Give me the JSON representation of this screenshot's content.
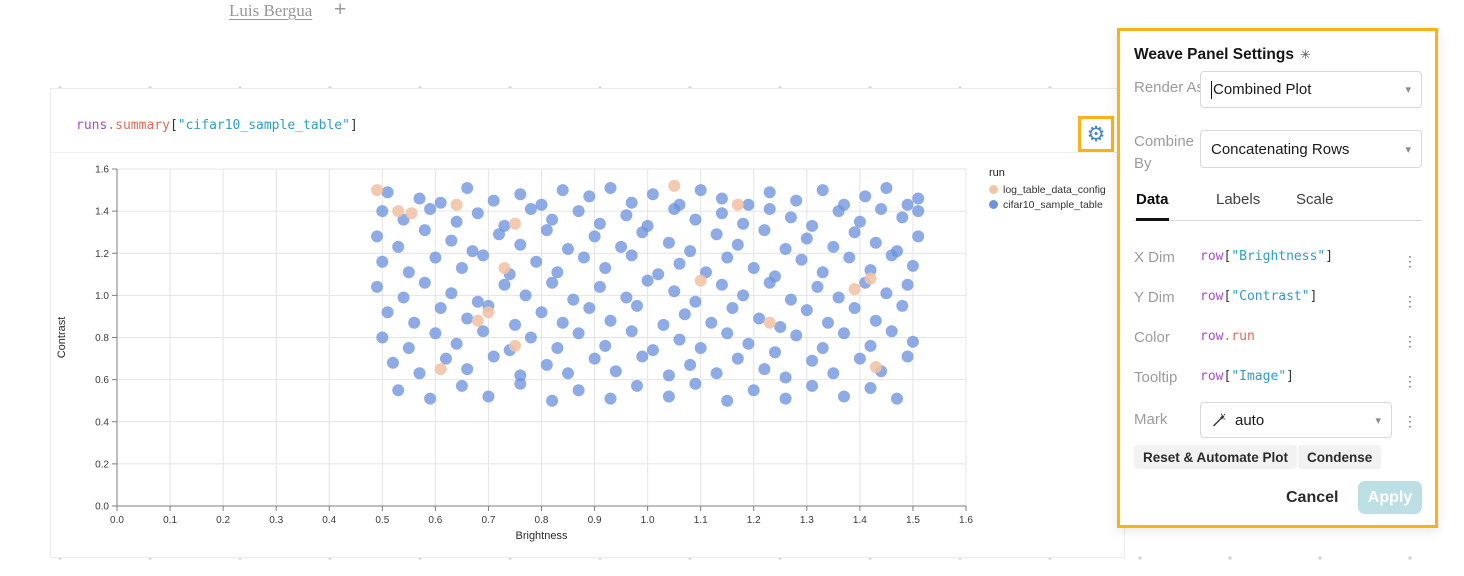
{
  "colors": {
    "accent": "#FCB119",
    "gear_blue": "#4285C9",
    "apply_bg": "#BCDFE3",
    "code_magenta": "#A94BCB",
    "code_red": "#E06C55",
    "code_teal": "#2E9EC7",
    "point_blue": "#6E93DE",
    "point_peach": "#F2C3A7"
  },
  "header": {
    "tab_label": "Luis Bergua",
    "add_tab_label": "+"
  },
  "panel": {
    "expression": {
      "obj": "runs",
      "prop": ".summary",
      "open": "[",
      "str": "\"cifar10_sample_table\"",
      "close": "]"
    }
  },
  "settings": {
    "title": "Weave Panel Settings",
    "weave_icon": "✳",
    "render_as": {
      "label": "Render As",
      "value": "Combined Plot"
    },
    "combine_by": {
      "label": "Combine By",
      "value": "Concatenating Rows"
    },
    "tabs": {
      "data": "Data",
      "labels": "Labels",
      "scale": "Scale"
    },
    "x_dim": {
      "label": "X Dim",
      "obj": "row",
      "open": "[",
      "str": "\"Brightness\"",
      "close": "]"
    },
    "y_dim": {
      "label": "Y Dim",
      "obj": "row",
      "open": "[",
      "str": "\"Contrast\"",
      "close": "]"
    },
    "color": {
      "label": "Color",
      "obj": "row",
      "prop": ".run"
    },
    "tooltip": {
      "label": "Tooltip",
      "obj": "row",
      "open": "[",
      "str": "\"Image\"",
      "close": "]"
    },
    "mark": {
      "label": "Mark",
      "value": "auto"
    },
    "kebab_glyph": "⋮",
    "caret_glyph": "▾",
    "buttons": {
      "reset": "Reset & Automate Plot",
      "condense": "Condense",
      "cancel": "Cancel",
      "apply": "Apply"
    }
  },
  "chart_data": {
    "type": "scatter",
    "title": "runs.summary[\"cifar10_sample_table\"]",
    "xlabel": "Brightness",
    "ylabel": "Contrast",
    "xlim": [
      0,
      1.6
    ],
    "ylim": [
      0,
      1.6
    ],
    "x_ticks": [
      0.0,
      0.1,
      0.2,
      0.3,
      0.4,
      0.5,
      0.6,
      0.7,
      0.8,
      0.9,
      1.0,
      1.1,
      1.2,
      1.3,
      1.4,
      1.5,
      1.6
    ],
    "y_ticks": [
      0.0,
      0.2,
      0.4,
      0.6,
      0.8,
      1.0,
      1.2,
      1.4,
      1.6
    ],
    "grid": true,
    "legend": {
      "title": "run",
      "position": "right",
      "entries": [
        {
          "label": "log_table_data_config",
          "color": "#F2C3A7"
        },
        {
          "label": "cifar10_sample_table",
          "color": "#6E93DE"
        }
      ]
    },
    "series": [
      {
        "name": "cifar10_sample_table",
        "color": "#6E93DE",
        "opacity": 0.78,
        "points": [
          [
            0.51,
            1.49
          ],
          [
            0.57,
            1.46
          ],
          [
            0.61,
            1.44
          ],
          [
            0.66,
            1.51
          ],
          [
            0.71,
            1.45
          ],
          [
            0.76,
            1.48
          ],
          [
            0.8,
            1.43
          ],
          [
            0.84,
            1.5
          ],
          [
            0.89,
            1.47
          ],
          [
            0.93,
            1.51
          ],
          [
            0.97,
            1.44
          ],
          [
            1.01,
            1.48
          ],
          [
            1.06,
            1.43
          ],
          [
            1.1,
            1.5
          ],
          [
            1.14,
            1.46
          ],
          [
            1.19,
            1.43
          ],
          [
            1.23,
            1.49
          ],
          [
            1.28,
            1.45
          ],
          [
            1.33,
            1.5
          ],
          [
            1.37,
            1.43
          ],
          [
            1.41,
            1.47
          ],
          [
            1.45,
            1.51
          ],
          [
            1.49,
            1.43
          ],
          [
            1.51,
            1.46
          ],
          [
            0.5,
            1.4
          ],
          [
            0.54,
            1.36
          ],
          [
            0.59,
            1.41
          ],
          [
            0.64,
            1.35
          ],
          [
            0.68,
            1.39
          ],
          [
            0.73,
            1.33
          ],
          [
            0.78,
            1.41
          ],
          [
            0.82,
            1.36
          ],
          [
            0.87,
            1.4
          ],
          [
            0.91,
            1.34
          ],
          [
            0.96,
            1.38
          ],
          [
            1.0,
            1.33
          ],
          [
            1.05,
            1.41
          ],
          [
            1.09,
            1.36
          ],
          [
            1.14,
            1.39
          ],
          [
            1.18,
            1.34
          ],
          [
            1.23,
            1.41
          ],
          [
            1.27,
            1.37
          ],
          [
            1.31,
            1.33
          ],
          [
            1.36,
            1.4
          ],
          [
            1.4,
            1.35
          ],
          [
            1.44,
            1.41
          ],
          [
            1.48,
            1.37
          ],
          [
            1.51,
            1.4
          ],
          [
            0.49,
            1.28
          ],
          [
            0.53,
            1.23
          ],
          [
            0.58,
            1.31
          ],
          [
            0.63,
            1.26
          ],
          [
            0.67,
            1.21
          ],
          [
            0.72,
            1.29
          ],
          [
            0.76,
            1.24
          ],
          [
            0.81,
            1.31
          ],
          [
            0.85,
            1.22
          ],
          [
            0.9,
            1.28
          ],
          [
            0.95,
            1.23
          ],
          [
            0.99,
            1.3
          ],
          [
            1.04,
            1.25
          ],
          [
            1.08,
            1.21
          ],
          [
            1.13,
            1.29
          ],
          [
            1.17,
            1.24
          ],
          [
            1.22,
            1.31
          ],
          [
            1.26,
            1.22
          ],
          [
            1.3,
            1.27
          ],
          [
            1.35,
            1.23
          ],
          [
            1.39,
            1.3
          ],
          [
            1.43,
            1.25
          ],
          [
            1.47,
            1.21
          ],
          [
            1.51,
            1.28
          ],
          [
            0.5,
            1.16
          ],
          [
            0.55,
            1.11
          ],
          [
            0.6,
            1.18
          ],
          [
            0.65,
            1.13
          ],
          [
            0.69,
            1.19
          ],
          [
            0.74,
            1.1
          ],
          [
            0.79,
            1.16
          ],
          [
            0.83,
            1.11
          ],
          [
            0.88,
            1.18
          ],
          [
            0.92,
            1.13
          ],
          [
            0.97,
            1.19
          ],
          [
            1.02,
            1.1
          ],
          [
            1.06,
            1.15
          ],
          [
            1.11,
            1.11
          ],
          [
            1.15,
            1.18
          ],
          [
            1.2,
            1.13
          ],
          [
            1.24,
            1.09
          ],
          [
            1.29,
            1.17
          ],
          [
            1.33,
            1.11
          ],
          [
            1.38,
            1.18
          ],
          [
            1.42,
            1.12
          ],
          [
            1.46,
            1.19
          ],
          [
            1.5,
            1.14
          ],
          [
            0.49,
            1.04
          ],
          [
            0.54,
            0.99
          ],
          [
            0.58,
            1.06
          ],
          [
            0.63,
            1.01
          ],
          [
            0.68,
            0.97
          ],
          [
            0.73,
            1.05
          ],
          [
            0.77,
            1.0
          ],
          [
            0.82,
            1.06
          ],
          [
            0.86,
            0.98
          ],
          [
            0.91,
            1.04
          ],
          [
            0.96,
            0.99
          ],
          [
            1.0,
            1.07
          ],
          [
            1.05,
            1.02
          ],
          [
            1.09,
            0.97
          ],
          [
            1.14,
            1.05
          ],
          [
            1.18,
            1.0
          ],
          [
            1.23,
            1.06
          ],
          [
            1.27,
            0.98
          ],
          [
            1.32,
            1.04
          ],
          [
            1.36,
            0.99
          ],
          [
            1.41,
            1.06
          ],
          [
            1.45,
            1.01
          ],
          [
            1.49,
            1.05
          ],
          [
            0.51,
            0.92
          ],
          [
            0.56,
            0.87
          ],
          [
            0.61,
            0.94
          ],
          [
            0.66,
            0.89
          ],
          [
            0.7,
            0.95
          ],
          [
            0.75,
            0.86
          ],
          [
            0.8,
            0.92
          ],
          [
            0.84,
            0.87
          ],
          [
            0.89,
            0.94
          ],
          [
            0.93,
            0.88
          ],
          [
            0.98,
            0.95
          ],
          [
            1.03,
            0.86
          ],
          [
            1.07,
            0.91
          ],
          [
            1.12,
            0.87
          ],
          [
            1.16,
            0.94
          ],
          [
            1.21,
            0.89
          ],
          [
            1.25,
            0.85
          ],
          [
            1.3,
            0.93
          ],
          [
            1.34,
            0.87
          ],
          [
            1.39,
            0.94
          ],
          [
            1.43,
            0.88
          ],
          [
            1.48,
            0.95
          ],
          [
            0.5,
            0.8
          ],
          [
            0.55,
            0.75
          ],
          [
            0.6,
            0.82
          ],
          [
            0.64,
            0.77
          ],
          [
            0.69,
            0.83
          ],
          [
            0.74,
            0.74
          ],
          [
            0.78,
            0.8
          ],
          [
            0.83,
            0.75
          ],
          [
            0.87,
            0.82
          ],
          [
            0.92,
            0.76
          ],
          [
            0.97,
            0.83
          ],
          [
            1.01,
            0.74
          ],
          [
            1.06,
            0.79
          ],
          [
            1.1,
            0.75
          ],
          [
            1.15,
            0.82
          ],
          [
            1.19,
            0.77
          ],
          [
            1.24,
            0.73
          ],
          [
            1.28,
            0.81
          ],
          [
            1.33,
            0.75
          ],
          [
            1.37,
            0.82
          ],
          [
            1.42,
            0.76
          ],
          [
            1.46,
            0.83
          ],
          [
            1.5,
            0.78
          ],
          [
            0.52,
            0.68
          ],
          [
            0.57,
            0.63
          ],
          [
            0.62,
            0.7
          ],
          [
            0.66,
            0.65
          ],
          [
            0.71,
            0.71
          ],
          [
            0.76,
            0.62
          ],
          [
            0.81,
            0.67
          ],
          [
            0.85,
            0.63
          ],
          [
            0.9,
            0.7
          ],
          [
            0.94,
            0.64
          ],
          [
            0.99,
            0.71
          ],
          [
            1.04,
            0.62
          ],
          [
            1.08,
            0.67
          ],
          [
            1.13,
            0.63
          ],
          [
            1.17,
            0.7
          ],
          [
            1.22,
            0.65
          ],
          [
            1.26,
            0.61
          ],
          [
            1.31,
            0.69
          ],
          [
            1.35,
            0.63
          ],
          [
            1.4,
            0.7
          ],
          [
            1.44,
            0.64
          ],
          [
            1.49,
            0.71
          ],
          [
            0.53,
            0.55
          ],
          [
            0.59,
            0.51
          ],
          [
            0.65,
            0.57
          ],
          [
            0.7,
            0.52
          ],
          [
            0.76,
            0.58
          ],
          [
            0.82,
            0.5
          ],
          [
            0.87,
            0.55
          ],
          [
            0.93,
            0.51
          ],
          [
            0.98,
            0.57
          ],
          [
            1.04,
            0.52
          ],
          [
            1.09,
            0.58
          ],
          [
            1.15,
            0.5
          ],
          [
            1.2,
            0.55
          ],
          [
            1.26,
            0.51
          ],
          [
            1.31,
            0.57
          ],
          [
            1.37,
            0.52
          ],
          [
            1.42,
            0.56
          ],
          [
            1.47,
            0.51
          ]
        ]
      },
      {
        "name": "log_table_data_config",
        "color": "#F2C3A7",
        "opacity": 0.9,
        "points": [
          [
            0.49,
            1.5
          ],
          [
            0.53,
            1.4
          ],
          [
            0.555,
            1.39
          ],
          [
            0.64,
            1.43
          ],
          [
            0.75,
            1.34
          ],
          [
            0.73,
            1.13
          ],
          [
            0.68,
            0.88
          ],
          [
            0.7,
            0.92
          ],
          [
            1.05,
            1.52
          ],
          [
            1.17,
            1.43
          ],
          [
            1.1,
            1.07
          ],
          [
            1.39,
            1.03
          ],
          [
            1.42,
            1.08
          ],
          [
            1.23,
            0.87
          ],
          [
            0.75,
            0.76
          ],
          [
            0.61,
            0.65
          ],
          [
            1.43,
            0.66
          ]
        ]
      }
    ]
  }
}
